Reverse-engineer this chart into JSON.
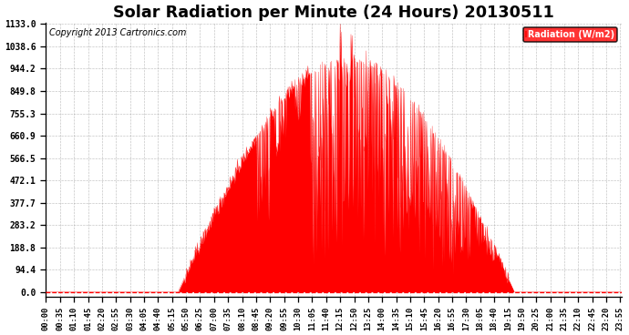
{
  "title": "Solar Radiation per Minute (24 Hours) 20130511",
  "copyright_text": "Copyright 2013 Cartronics.com",
  "legend_label": "Radiation (W/m2)",
  "ylabel_values": [
    0.0,
    94.4,
    188.8,
    283.2,
    377.7,
    472.1,
    566.5,
    660.9,
    755.3,
    849.8,
    944.2,
    1038.6,
    1133.0
  ],
  "ymax": 1133.0,
  "fill_color": "#FF0000",
  "line_color": "#FF0000",
  "background_color": "#FFFFFF",
  "grid_color": "#999999",
  "legend_bg": "#FF0000",
  "legend_text_color": "#FFFFFF",
  "title_fontsize": 11,
  "tick_fontsize": 6,
  "copyright_fontsize": 6,
  "sunrise_min": 330,
  "sunset_min": 1170,
  "peak_min": 750,
  "peak_value": 1133.0
}
